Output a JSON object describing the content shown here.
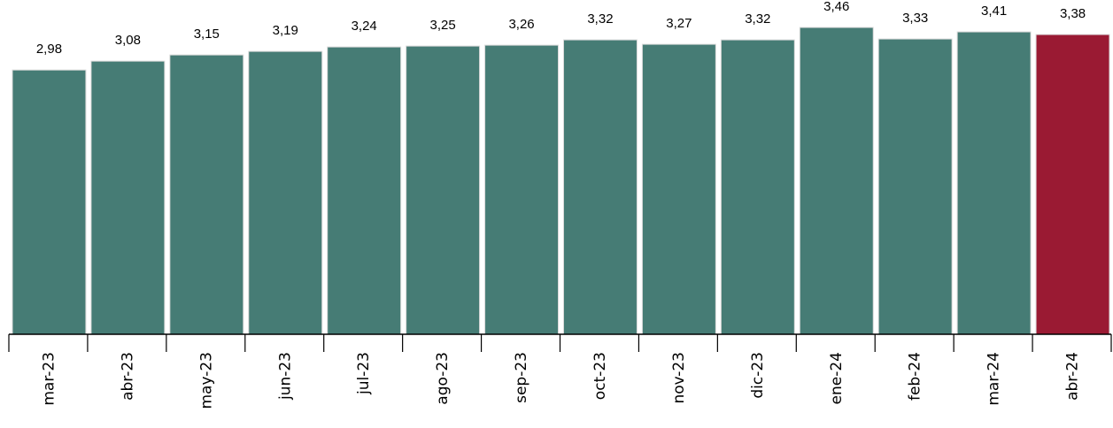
{
  "chart_data": {
    "type": "bar",
    "categories": [
      "mar-23",
      "abr-23",
      "may-23",
      "jun-23",
      "jul-23",
      "ago-23",
      "sep-23",
      "oct-23",
      "nov-23",
      "dic-23",
      "ene-24",
      "feb-24",
      "mar-24",
      "abr-24"
    ],
    "values": [
      2.98,
      3.08,
      3.15,
      3.19,
      3.24,
      3.25,
      3.26,
      3.32,
      3.27,
      3.32,
      3.46,
      3.33,
      3.41,
      3.38
    ],
    "value_labels": [
      "2,98",
      "3,08",
      "3,15",
      "3,19",
      "3,24",
      "3,25",
      "3,26",
      "3,32",
      "3,27",
      "3,32",
      "3,46",
      "3,33",
      "3,41",
      "3,38"
    ],
    "title": "",
    "xlabel": "",
    "ylabel": "",
    "ylim": [
      0,
      3.65
    ],
    "grid": false,
    "legend": "none",
    "colors": {
      "bar": "#467c75",
      "highlight": "#9a1a33",
      "axis": "#000000"
    },
    "highlight_index": 13
  }
}
